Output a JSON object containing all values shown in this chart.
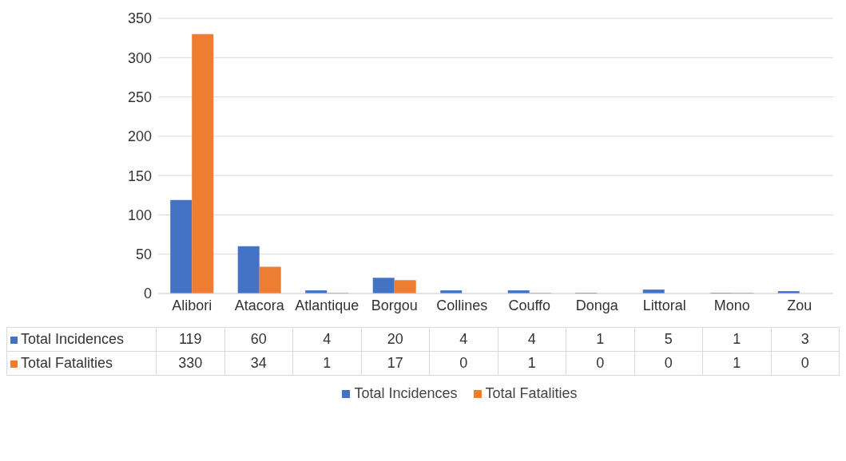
{
  "chart_data": {
    "type": "bar",
    "categories": [
      "Alibori",
      "Atacora",
      "Atlantique",
      "Borgou",
      "Collines",
      "Couffo",
      "Donga",
      "Littoral",
      "Mono",
      "Zou"
    ],
    "series": [
      {
        "name": "Total Incidences",
        "color": "#4472c4",
        "values": [
          119,
          60,
          4,
          20,
          4,
          4,
          1,
          5,
          1,
          3
        ]
      },
      {
        "name": "Total Fatalities",
        "color": "#ed7d31",
        "values": [
          330,
          34,
          1,
          17,
          0,
          1,
          0,
          0,
          1,
          0
        ]
      }
    ],
    "ylim": [
      0,
      350
    ],
    "yticks": [
      0,
      50,
      100,
      150,
      200,
      250,
      300,
      350
    ],
    "grid": "y",
    "legend": "bottom",
    "data_labels": true
  }
}
